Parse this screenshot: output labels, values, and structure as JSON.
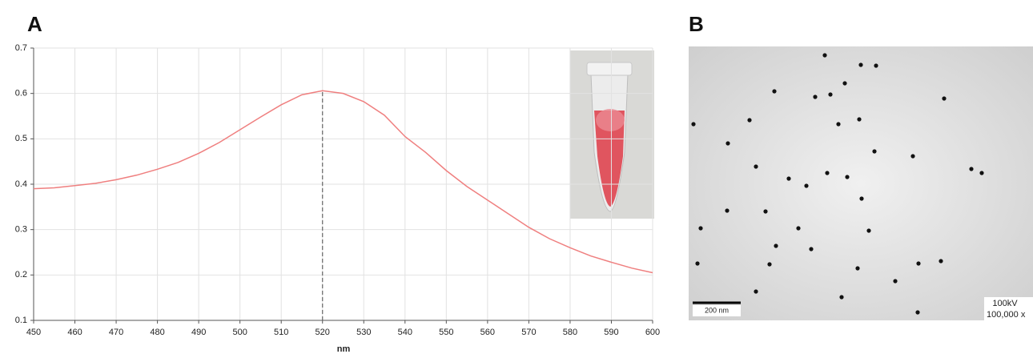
{
  "panel_labels": [
    "A",
    "B"
  ],
  "chart_data": {
    "type": "line",
    "xlabel": "nm",
    "x": [
      450,
      455,
      460,
      465,
      470,
      475,
      480,
      485,
      490,
      495,
      500,
      505,
      510,
      515,
      520,
      525,
      530,
      535,
      540,
      545,
      550,
      555,
      560,
      565,
      570,
      575,
      580,
      585,
      590,
      595,
      600
    ],
    "values": [
      0.39,
      0.392,
      0.397,
      0.402,
      0.41,
      0.42,
      0.433,
      0.448,
      0.468,
      0.492,
      0.52,
      0.548,
      0.575,
      0.597,
      0.606,
      0.6,
      0.582,
      0.552,
      0.505,
      0.47,
      0.43,
      0.395,
      0.365,
      0.335,
      0.305,
      0.28,
      0.26,
      0.242,
      0.228,
      0.215,
      0.205
    ],
    "color": "#ef7f7f",
    "xlim": [
      450,
      600
    ],
    "ylim": [
      0.1,
      0.7
    ],
    "xticks": [
      450,
      460,
      470,
      480,
      490,
      500,
      510,
      520,
      530,
      540,
      550,
      560,
      570,
      580,
      590,
      600
    ],
    "yticks": [
      0.1,
      0.2,
      0.3,
      0.4,
      0.5,
      0.6,
      0.7
    ],
    "grid": true,
    "marker_line": {
      "x": 520,
      "y": 0.606
    }
  },
  "micrograph": {
    "scale_bar": "200 nm",
    "info": [
      "100kV",
      "100,000 x"
    ]
  }
}
